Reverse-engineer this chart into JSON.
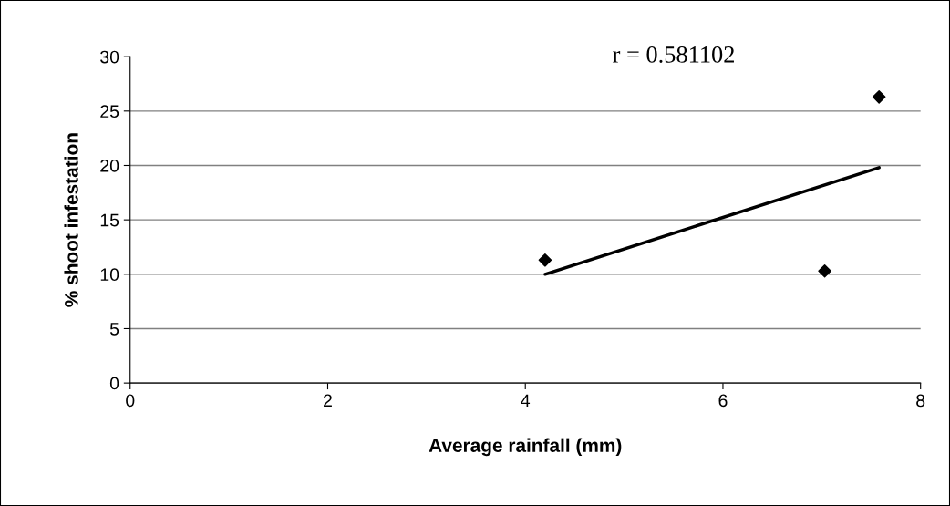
{
  "chart_data": {
    "type": "scatter",
    "xlabel": "Average rainfall (mm)",
    "ylabel": "% shoot infestation",
    "annotations": [
      "r = 0.581102"
    ],
    "xlim": [
      0,
      8
    ],
    "xticks": [
      0,
      2,
      4,
      6,
      8
    ],
    "ylim": [
      0,
      30
    ],
    "yticks": [
      0,
      5,
      10,
      15,
      20,
      25,
      30
    ],
    "grid": "y",
    "legend": false,
    "series": [
      {
        "color": "#000000",
        "marker": "diamond",
        "x": [
          4.2,
          7.03,
          7.58
        ],
        "values": [
          11.3,
          10.3,
          26.3
        ]
      },
      {
        "type": "line",
        "color": "#000000",
        "marker": "none",
        "line_style": "solid",
        "x": [
          4.2,
          7.58
        ],
        "values": [
          10.0,
          19.8
        ]
      }
    ]
  }
}
